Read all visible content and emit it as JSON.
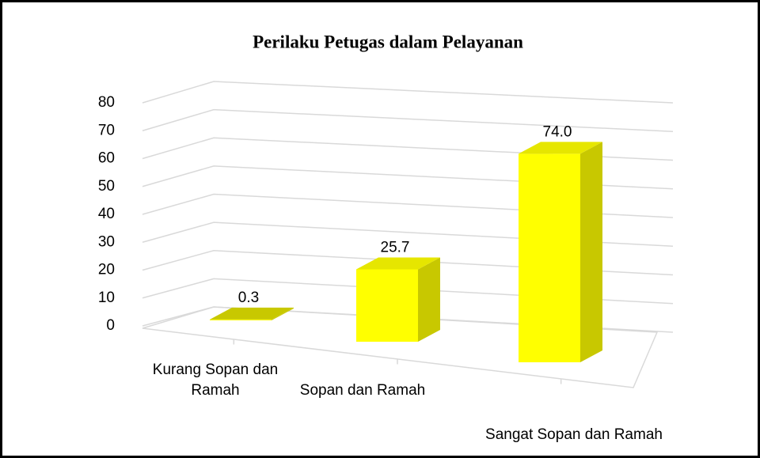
{
  "chart_data": {
    "type": "bar3d",
    "title": "Perilaku Petugas dalam Pelayanan",
    "categories": [
      "Kurang Sopan dan Ramah",
      "Sopan dan Ramah",
      "Sangat Sopan dan Ramah"
    ],
    "values": [
      0.3,
      25.7,
      74.0
    ],
    "value_labels": [
      "0.3",
      "25.7",
      "74.0"
    ],
    "color": "#ffff00",
    "ylim": [
      0,
      80
    ],
    "yticks": [
      0,
      10,
      20,
      30,
      40,
      50,
      60,
      70,
      80
    ],
    "grid": true
  }
}
